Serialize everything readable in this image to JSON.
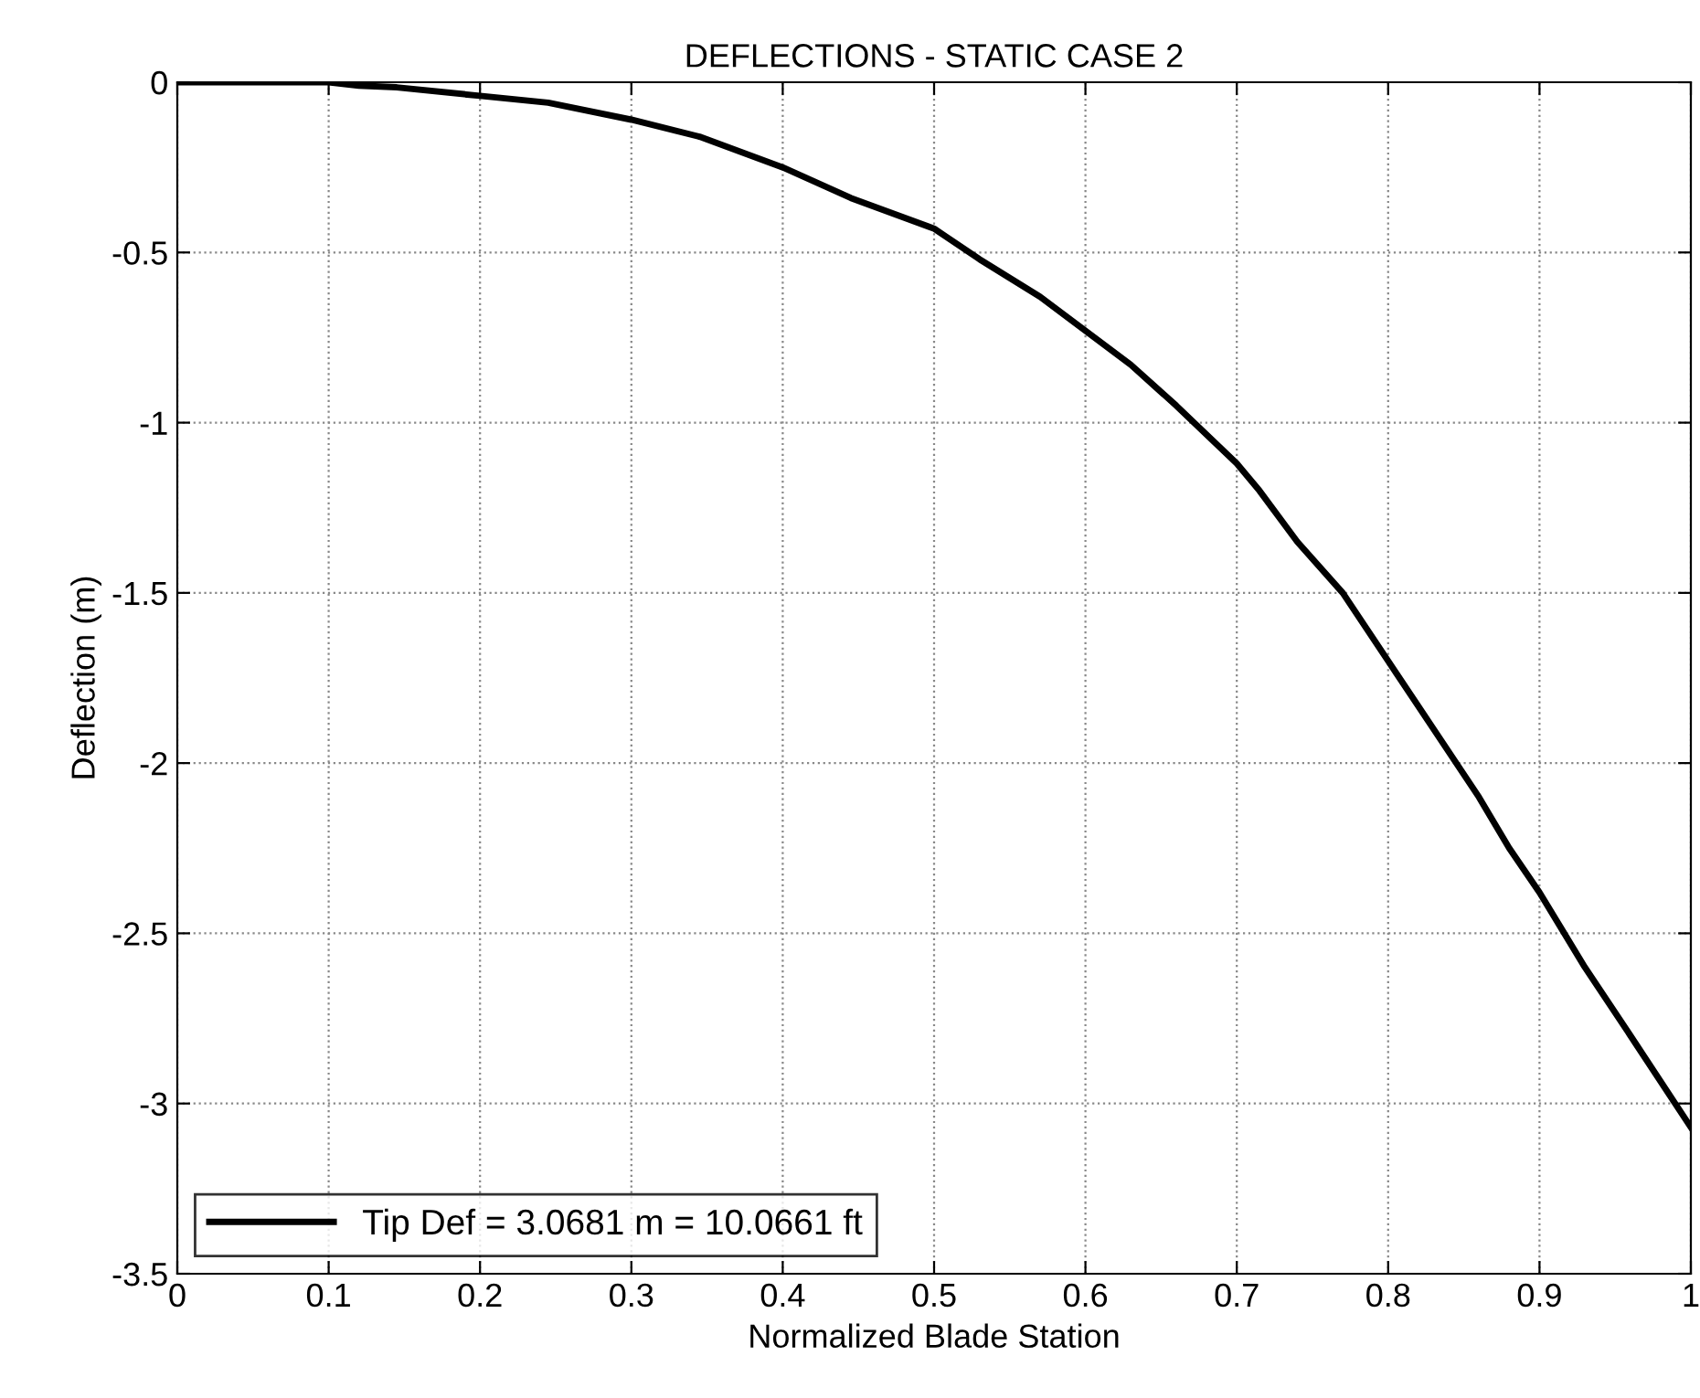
{
  "chart_data": {
    "type": "line",
    "title": "DEFLECTIONS - STATIC CASE 2",
    "xlabel": "Normalized Blade Station",
    "ylabel": "Deflection (m)",
    "xlim": [
      0,
      1
    ],
    "xticks": [
      0,
      0.1,
      0.2,
      0.3,
      0.4,
      0.5,
      0.6,
      0.7,
      0.8,
      0.9,
      1
    ],
    "ylim": [
      -3.5,
      0
    ],
    "yticks": [
      -3.5,
      -3,
      -2.5,
      -2,
      -1.5,
      -1,
      -0.5,
      0
    ],
    "grid": true,
    "legend": "bottom left",
    "line_style": "solid",
    "marker": "none",
    "series": [
      {
        "name": "Tip Def = 3.0681 m = 10.0661 ft",
        "color": "#000000",
        "x": [
          0,
          0.1,
          0.12,
          0.145,
          0.2,
          0.245,
          0.3,
          0.345,
          0.4,
          0.445,
          0.5,
          0.53,
          0.57,
          0.6,
          0.63,
          0.66,
          0.7,
          0.715,
          0.74,
          0.77,
          0.8,
          0.83,
          0.86,
          0.88,
          0.9,
          0.93,
          0.96,
          1.0
        ],
        "values": [
          0,
          0,
          -0.01,
          -0.015,
          -0.04,
          -0.06,
          -0.11,
          -0.16,
          -0.25,
          -0.34,
          -0.43,
          -0.52,
          -0.63,
          -0.73,
          -0.83,
          -0.95,
          -1.12,
          -1.2,
          -1.35,
          -1.5,
          -1.7,
          -1.9,
          -2.1,
          -2.25,
          -2.38,
          -2.6,
          -2.8,
          -3.07
        ]
      }
    ]
  }
}
